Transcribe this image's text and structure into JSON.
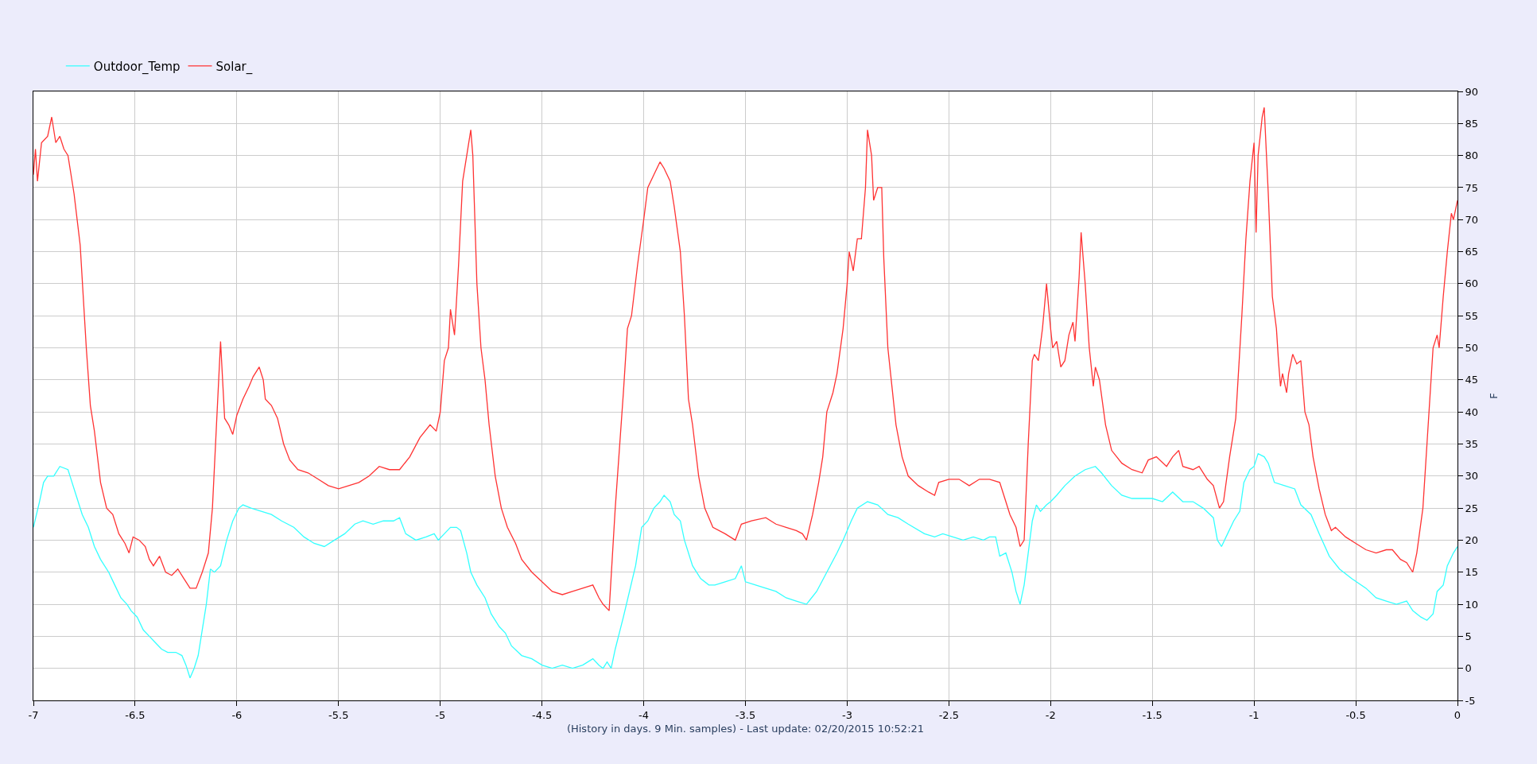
{
  "chart_data": {
    "type": "line",
    "xlabel": "(History in days. 9 Min. samples) - Last update: 02/20/2015 10:52:21",
    "ylabel": "F",
    "xlim": [
      -7,
      0
    ],
    "xticks": [
      -7,
      -6.5,
      -6,
      -5.5,
      -5,
      -4.5,
      -4,
      -3.5,
      -3,
      -2.5,
      -2,
      -1.5,
      -1,
      -0.5,
      0
    ],
    "ylim": [
      -5,
      90
    ],
    "yticks": [
      -5,
      0,
      5,
      10,
      15,
      20,
      25,
      30,
      35,
      40,
      45,
      50,
      55,
      60,
      65,
      70,
      75,
      80,
      85,
      90
    ],
    "grid": true,
    "legend": "top left",
    "marker": "none",
    "line_style": "solid",
    "series": [
      {
        "name": "Outdoor_Temp",
        "color": "#33ffff",
        "x": [
          -7,
          -6.97,
          -6.95,
          -6.93,
          -6.9,
          -6.87,
          -6.83,
          -6.81,
          -6.79,
          -6.76,
          -6.73,
          -6.7,
          -6.67,
          -6.63,
          -6.6,
          -6.57,
          -6.54,
          -6.52,
          -6.49,
          -6.46,
          -6.43,
          -6.4,
          -6.37,
          -6.34,
          -6.3,
          -6.27,
          -6.25,
          -6.23,
          -6.21,
          -6.19,
          -6.17,
          -6.15,
          -6.13,
          -6.11,
          -6.08,
          -6.05,
          -6.02,
          -5.99,
          -5.97,
          -5.93,
          -5.88,
          -5.83,
          -5.78,
          -5.72,
          -5.67,
          -5.62,
          -5.57,
          -5.52,
          -5.47,
          -5.42,
          -5.38,
          -5.33,
          -5.28,
          -5.23,
          -5.2,
          -5.17,
          -5.12,
          -5.07,
          -5.03,
          -5.01,
          -4.98,
          -4.95,
          -4.92,
          -4.9,
          -4.87,
          -4.85,
          -4.82,
          -4.78,
          -4.75,
          -4.71,
          -4.68,
          -4.65,
          -4.6,
          -4.55,
          -4.5,
          -4.45,
          -4.4,
          -4.35,
          -4.3,
          -4.25,
          -4.22,
          -4.2,
          -4.18,
          -4.16,
          -4.14,
          -4.1,
          -4.07,
          -4.04,
          -4.01,
          -3.98,
          -3.95,
          -3.92,
          -3.9,
          -3.87,
          -3.85,
          -3.82,
          -3.8,
          -3.76,
          -3.72,
          -3.68,
          -3.65,
          -3.6,
          -3.55,
          -3.52,
          -3.5,
          -3.45,
          -3.4,
          -3.35,
          -3.3,
          -3.25,
          -3.2,
          -3.15,
          -3.1,
          -3.05,
          -3.02,
          -2.98,
          -2.95,
          -2.9,
          -2.85,
          -2.8,
          -2.75,
          -2.7,
          -2.62,
          -2.57,
          -2.53,
          -2.48,
          -2.43,
          -2.38,
          -2.33,
          -2.3,
          -2.27,
          -2.25,
          -2.22,
          -2.19,
          -2.17,
          -2.15,
          -2.13,
          -2.11,
          -2.09,
          -2.07,
          -2.05,
          -2.02,
          -2,
          -1.97,
          -1.93,
          -1.88,
          -1.83,
          -1.78,
          -1.75,
          -1.7,
          -1.65,
          -1.6,
          -1.55,
          -1.5,
          -1.45,
          -1.4,
          -1.35,
          -1.3,
          -1.25,
          -1.2,
          -1.18,
          -1.16,
          -1.13,
          -1.1,
          -1.07,
          -1.05,
          -1.02,
          -1,
          -0.98,
          -0.95,
          -0.93,
          -0.9,
          -0.85,
          -0.8,
          -0.77,
          -0.72,
          -0.68,
          -0.63,
          -0.58,
          -0.52,
          -0.45,
          -0.4,
          -0.35,
          -0.3,
          -0.25,
          -0.22,
          -0.18,
          -0.15,
          -0.12,
          -0.1,
          -0.07,
          -0.05,
          -0.02,
          0
        ],
        "values": [
          22,
          26,
          29,
          30,
          30,
          31.5,
          31,
          29,
          27,
          24,
          22,
          19,
          17,
          15,
          13,
          11,
          10,
          9,
          8,
          6,
          5,
          4,
          3,
          2.5,
          2.5,
          2,
          0.5,
          -1.5,
          0,
          2,
          6,
          10,
          15.5,
          15,
          16,
          20,
          23,
          25,
          25.5,
          25,
          24.5,
          24,
          23,
          22,
          20.5,
          19.5,
          19,
          20,
          21,
          22.5,
          23,
          22.5,
          23,
          23,
          23.5,
          21,
          20,
          20.5,
          21,
          20,
          21,
          22,
          22,
          21.5,
          18,
          15,
          13,
          11,
          8.5,
          6.5,
          5.5,
          3.5,
          2,
          1.5,
          0.5,
          0,
          0.5,
          0,
          0.5,
          1.5,
          0.5,
          0,
          1,
          0,
          3,
          8,
          12,
          16,
          22,
          23,
          25,
          26,
          27,
          26,
          24,
          23,
          20,
          16,
          14,
          13,
          13,
          13.5,
          14,
          16,
          13.5,
          13,
          12.5,
          12,
          11,
          10.5,
          10,
          12,
          15,
          18,
          20,
          23,
          25,
          26,
          25.5,
          24,
          23.5,
          22.5,
          21,
          20.5,
          21,
          20.5,
          20,
          20.5,
          20,
          20.5,
          20.5,
          17.5,
          18,
          15,
          12,
          10,
          13,
          18,
          23,
          25.5,
          24.5,
          25.5,
          26,
          27,
          28.5,
          30,
          31,
          31.5,
          30.5,
          28.5,
          27,
          26.5,
          26.5,
          26.5,
          26,
          27.5,
          26,
          26,
          25,
          23.5,
          20,
          19,
          21,
          23,
          24.5,
          29,
          31,
          31.5,
          33.5,
          33,
          32,
          29,
          28.5,
          28,
          25.5,
          24,
          21,
          17.5,
          15.5,
          14,
          12.5,
          11,
          10.5,
          10,
          10.5,
          9,
          8,
          7.5,
          8.5,
          12,
          13,
          16,
          18,
          19
        ]
      },
      {
        "name": "Solar_",
        "color": "#ff3333",
        "x": [
          -7,
          -6.99,
          -6.98,
          -6.96,
          -6.93,
          -6.91,
          -6.89,
          -6.87,
          -6.85,
          -6.83,
          -6.8,
          -6.77,
          -6.74,
          -6.72,
          -6.7,
          -6.67,
          -6.64,
          -6.61,
          -6.58,
          -6.55,
          -6.53,
          -6.51,
          -6.48,
          -6.45,
          -6.43,
          -6.41,
          -6.38,
          -6.35,
          -6.32,
          -6.29,
          -6.26,
          -6.23,
          -6.2,
          -6.17,
          -6.14,
          -6.12,
          -6.1,
          -6.08,
          -6.07,
          -6.06,
          -6.04,
          -6.02,
          -6,
          -5.97,
          -5.94,
          -5.92,
          -5.89,
          -5.87,
          -5.86,
          -5.83,
          -5.8,
          -5.77,
          -5.74,
          -5.7,
          -5.65,
          -5.6,
          -5.55,
          -5.5,
          -5.45,
          -5.4,
          -5.35,
          -5.3,
          -5.25,
          -5.2,
          -5.15,
          -5.1,
          -5.05,
          -5.02,
          -5,
          -4.98,
          -4.96,
          -4.95,
          -4.93,
          -4.91,
          -4.89,
          -4.87,
          -4.85,
          -4.84,
          -4.82,
          -4.8,
          -4.78,
          -4.76,
          -4.73,
          -4.7,
          -4.67,
          -4.63,
          -4.6,
          -4.55,
          -4.5,
          -4.45,
          -4.4,
          -4.35,
          -4.3,
          -4.25,
          -4.22,
          -4.2,
          -4.17,
          -4.14,
          -4.1,
          -4.08,
          -4.06,
          -4.03,
          -4,
          -3.98,
          -3.95,
          -3.92,
          -3.9,
          -3.87,
          -3.85,
          -3.82,
          -3.8,
          -3.78,
          -3.76,
          -3.73,
          -3.7,
          -3.66,
          -3.6,
          -3.55,
          -3.52,
          -3.47,
          -3.4,
          -3.35,
          -3.3,
          -3.25,
          -3.22,
          -3.2,
          -3.17,
          -3.14,
          -3.12,
          -3.1,
          -3.07,
          -3.05,
          -3.02,
          -3,
          -2.99,
          -2.97,
          -2.95,
          -2.93,
          -2.91,
          -2.9,
          -2.88,
          -2.87,
          -2.85,
          -2.83,
          -2.82,
          -2.8,
          -2.78,
          -2.76,
          -2.73,
          -2.7,
          -2.65,
          -2.6,
          -2.57,
          -2.55,
          -2.5,
          -2.45,
          -2.4,
          -2.35,
          -2.3,
          -2.25,
          -2.22,
          -2.2,
          -2.17,
          -2.15,
          -2.13,
          -2.11,
          -2.09,
          -2.08,
          -2.06,
          -2.04,
          -2.02,
          -2,
          -1.99,
          -1.97,
          -1.95,
          -1.93,
          -1.91,
          -1.89,
          -1.88,
          -1.86,
          -1.85,
          -1.83,
          -1.81,
          -1.79,
          -1.78,
          -1.76,
          -1.73,
          -1.7,
          -1.65,
          -1.6,
          -1.55,
          -1.52,
          -1.48,
          -1.43,
          -1.4,
          -1.37,
          -1.35,
          -1.3,
          -1.27,
          -1.23,
          -1.2,
          -1.17,
          -1.15,
          -1.12,
          -1.09,
          -1.06,
          -1.04,
          -1.02,
          -1,
          -0.99,
          -0.98,
          -0.96,
          -0.95,
          -0.93,
          -0.91,
          -0.89,
          -0.88,
          -0.87,
          -0.86,
          -0.84,
          -0.83,
          -0.81,
          -0.79,
          -0.77,
          -0.75,
          -0.73,
          -0.71,
          -0.68,
          -0.65,
          -0.62,
          -0.6,
          -0.55,
          -0.5,
          -0.45,
          -0.4,
          -0.35,
          -0.32,
          -0.28,
          -0.25,
          -0.22,
          -0.2,
          -0.17,
          -0.15,
          -0.12,
          -0.1,
          -0.09,
          -0.07,
          -0.05,
          -0.03,
          -0.02,
          0
        ],
        "values": [
          77,
          81,
          76,
          82,
          83,
          86,
          82,
          83,
          81,
          80,
          74,
          66,
          50,
          41,
          37,
          29,
          25,
          24,
          21,
          19.5,
          18,
          20.5,
          20,
          19,
          17,
          16,
          17.5,
          15,
          14.5,
          15.5,
          14,
          12.5,
          12.5,
          15,
          18,
          25,
          38,
          51,
          45,
          39,
          38,
          36.5,
          39.5,
          42,
          44,
          45.5,
          47,
          45,
          42,
          41,
          39,
          35,
          32.5,
          31,
          30.5,
          29.5,
          28.5,
          28,
          28.5,
          29,
          30,
          31.5,
          31,
          31,
          33,
          36,
          38,
          37,
          40,
          48,
          50,
          56,
          52,
          63,
          76,
          80,
          84,
          80,
          60,
          50,
          45,
          38,
          30,
          25,
          22,
          19.5,
          17,
          15,
          13.5,
          12,
          11.5,
          12,
          12.5,
          13,
          11,
          10,
          9,
          25,
          43,
          53,
          55,
          63,
          70,
          75,
          77,
          79,
          78,
          76,
          72,
          65,
          55,
          42,
          38,
          30,
          25,
          22,
          21,
          20,
          22.5,
          23,
          23.5,
          22.5,
          22,
          21.5,
          21,
          20,
          24,
          29,
          33,
          40,
          43,
          46,
          53,
          60,
          65,
          62,
          67,
          67,
          75,
          84,
          80,
          73,
          75,
          75,
          64,
          50,
          44,
          38,
          33,
          30,
          28.5,
          27.5,
          27,
          29,
          29.5,
          29.5,
          28.5,
          29.5,
          29.5,
          29,
          26,
          24,
          22,
          19,
          20,
          35,
          48,
          49,
          48,
          53,
          60,
          53,
          50,
          51,
          47,
          48,
          52,
          54,
          51,
          61,
          68,
          60,
          50,
          44,
          47,
          45,
          38,
          34,
          32,
          31,
          30.5,
          32.5,
          33,
          31.5,
          33,
          34,
          31.5,
          31,
          31.5,
          29.5,
          28.5,
          25,
          26,
          33,
          39,
          55,
          67,
          76,
          82,
          68,
          80,
          86,
          87.5,
          74,
          58,
          53,
          48,
          44,
          46,
          43,
          46,
          49,
          47.5,
          48,
          40,
          38,
          33,
          28,
          24,
          21.5,
          22,
          20.5,
          19.5,
          18.5,
          18,
          18.5,
          18.5,
          17,
          16.5,
          15,
          18,
          25,
          35,
          50,
          52,
          50,
          58,
          65,
          71,
          70,
          73
        ]
      }
    ]
  }
}
